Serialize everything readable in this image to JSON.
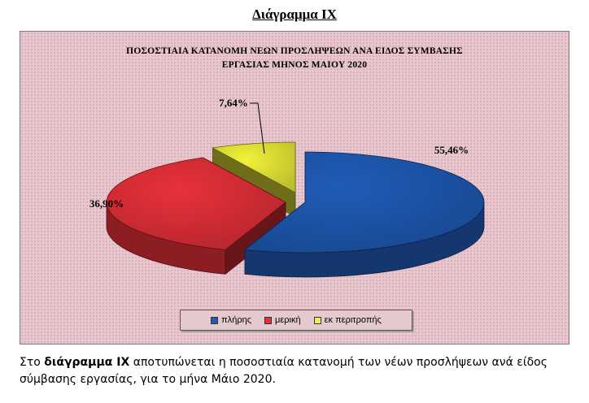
{
  "page": {
    "heading": "Διάγραμμα ΙΧ",
    "caption_intro": "Στο ",
    "caption_bold": "διάγραμμα ΙΧ",
    "caption_rest": " αποτυπώνεται η ποσοστιαία κατανομή των νέων προσλήψεων ανά είδος σύμβασης εργασίας,  για το μήνα Μάιο 2020."
  },
  "chart_data": {
    "type": "pie",
    "title_line1": "ΠΟΣΟΣΤΙΑΙΑ  ΚΑΤΑΝΟΜΗ  ΝΕΩΝ  ΠΡΟΣΛΗΨΕΩΝ ΑΝΑ ΕΙΔΟΣ ΣΥΜΒΑΣΗΣ",
    "title_line2": "ΕΡΓΑΣΙΑΣ ΜΗΝΟΣ  ΜΑΙΟΥ 2020",
    "categories": [
      "πλήρης",
      "μερική",
      "εκ περιτροπής"
    ],
    "values": [
      55.46,
      36.9,
      7.64
    ],
    "labels": [
      "55,46%",
      "36,90%",
      "7,64%"
    ],
    "colors": [
      "#1f5cb8",
      "#e8313a",
      "#f2f23a"
    ],
    "style": "3d-exploded",
    "legend_position": "bottom"
  }
}
